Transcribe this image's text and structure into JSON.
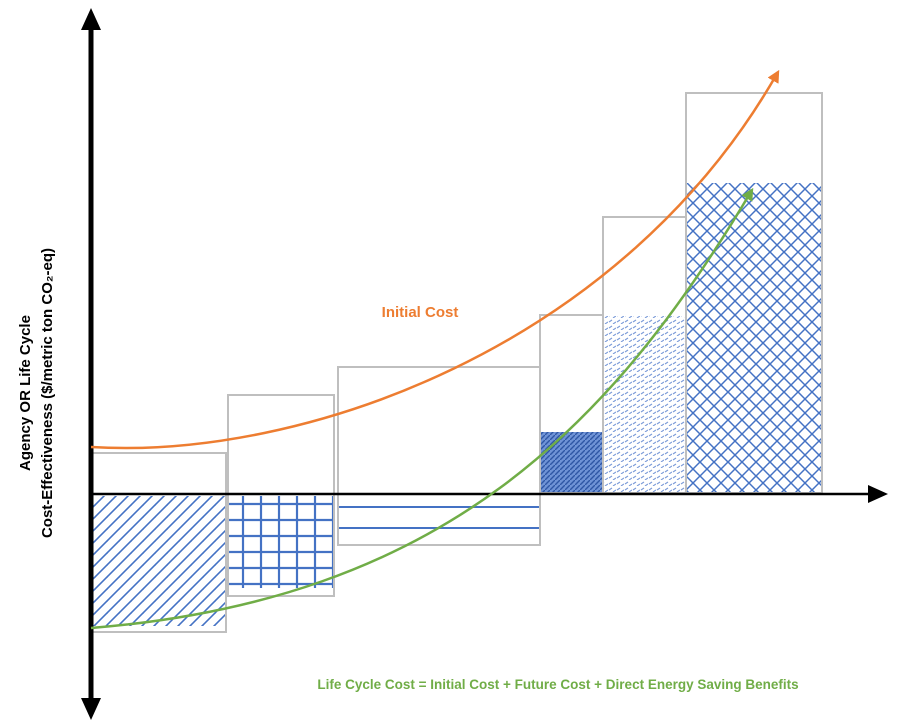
{
  "diagram": {
    "y_axis_label_line1": "Agency OR Life Cycle",
    "y_axis_label_line2": "Cost-Effectiveness ($/metric ton CO₂-eq)",
    "initial_cost_label": "Initial Cost",
    "life_cycle_label": "Life Cycle Cost = Initial Cost + Future Cost + Direct Energy Saving Benefits",
    "colors": {
      "axis": "#000000",
      "box_outline": "#bfbfbf",
      "pattern_blue": "#4472c4",
      "initial_cost_curve": "#ed7d31",
      "life_cycle_curve": "#70ad47"
    },
    "curve_names": [
      "initial-cost-curve",
      "life-cycle-cost-curve"
    ]
  }
}
